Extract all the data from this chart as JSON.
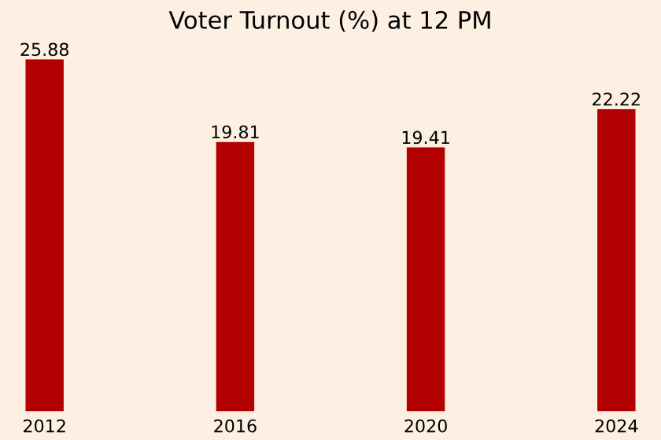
{
  "chart_data": {
    "type": "bar",
    "title": "Voter Turnout (%) at 12 PM",
    "categories": [
      "2012",
      "2016",
      "2020",
      "2024"
    ],
    "values": [
      25.88,
      19.81,
      19.41,
      22.22
    ],
    "color": "#b30000",
    "data_labels": true,
    "tick_labels": "x",
    "grid": false,
    "legend": false
  }
}
